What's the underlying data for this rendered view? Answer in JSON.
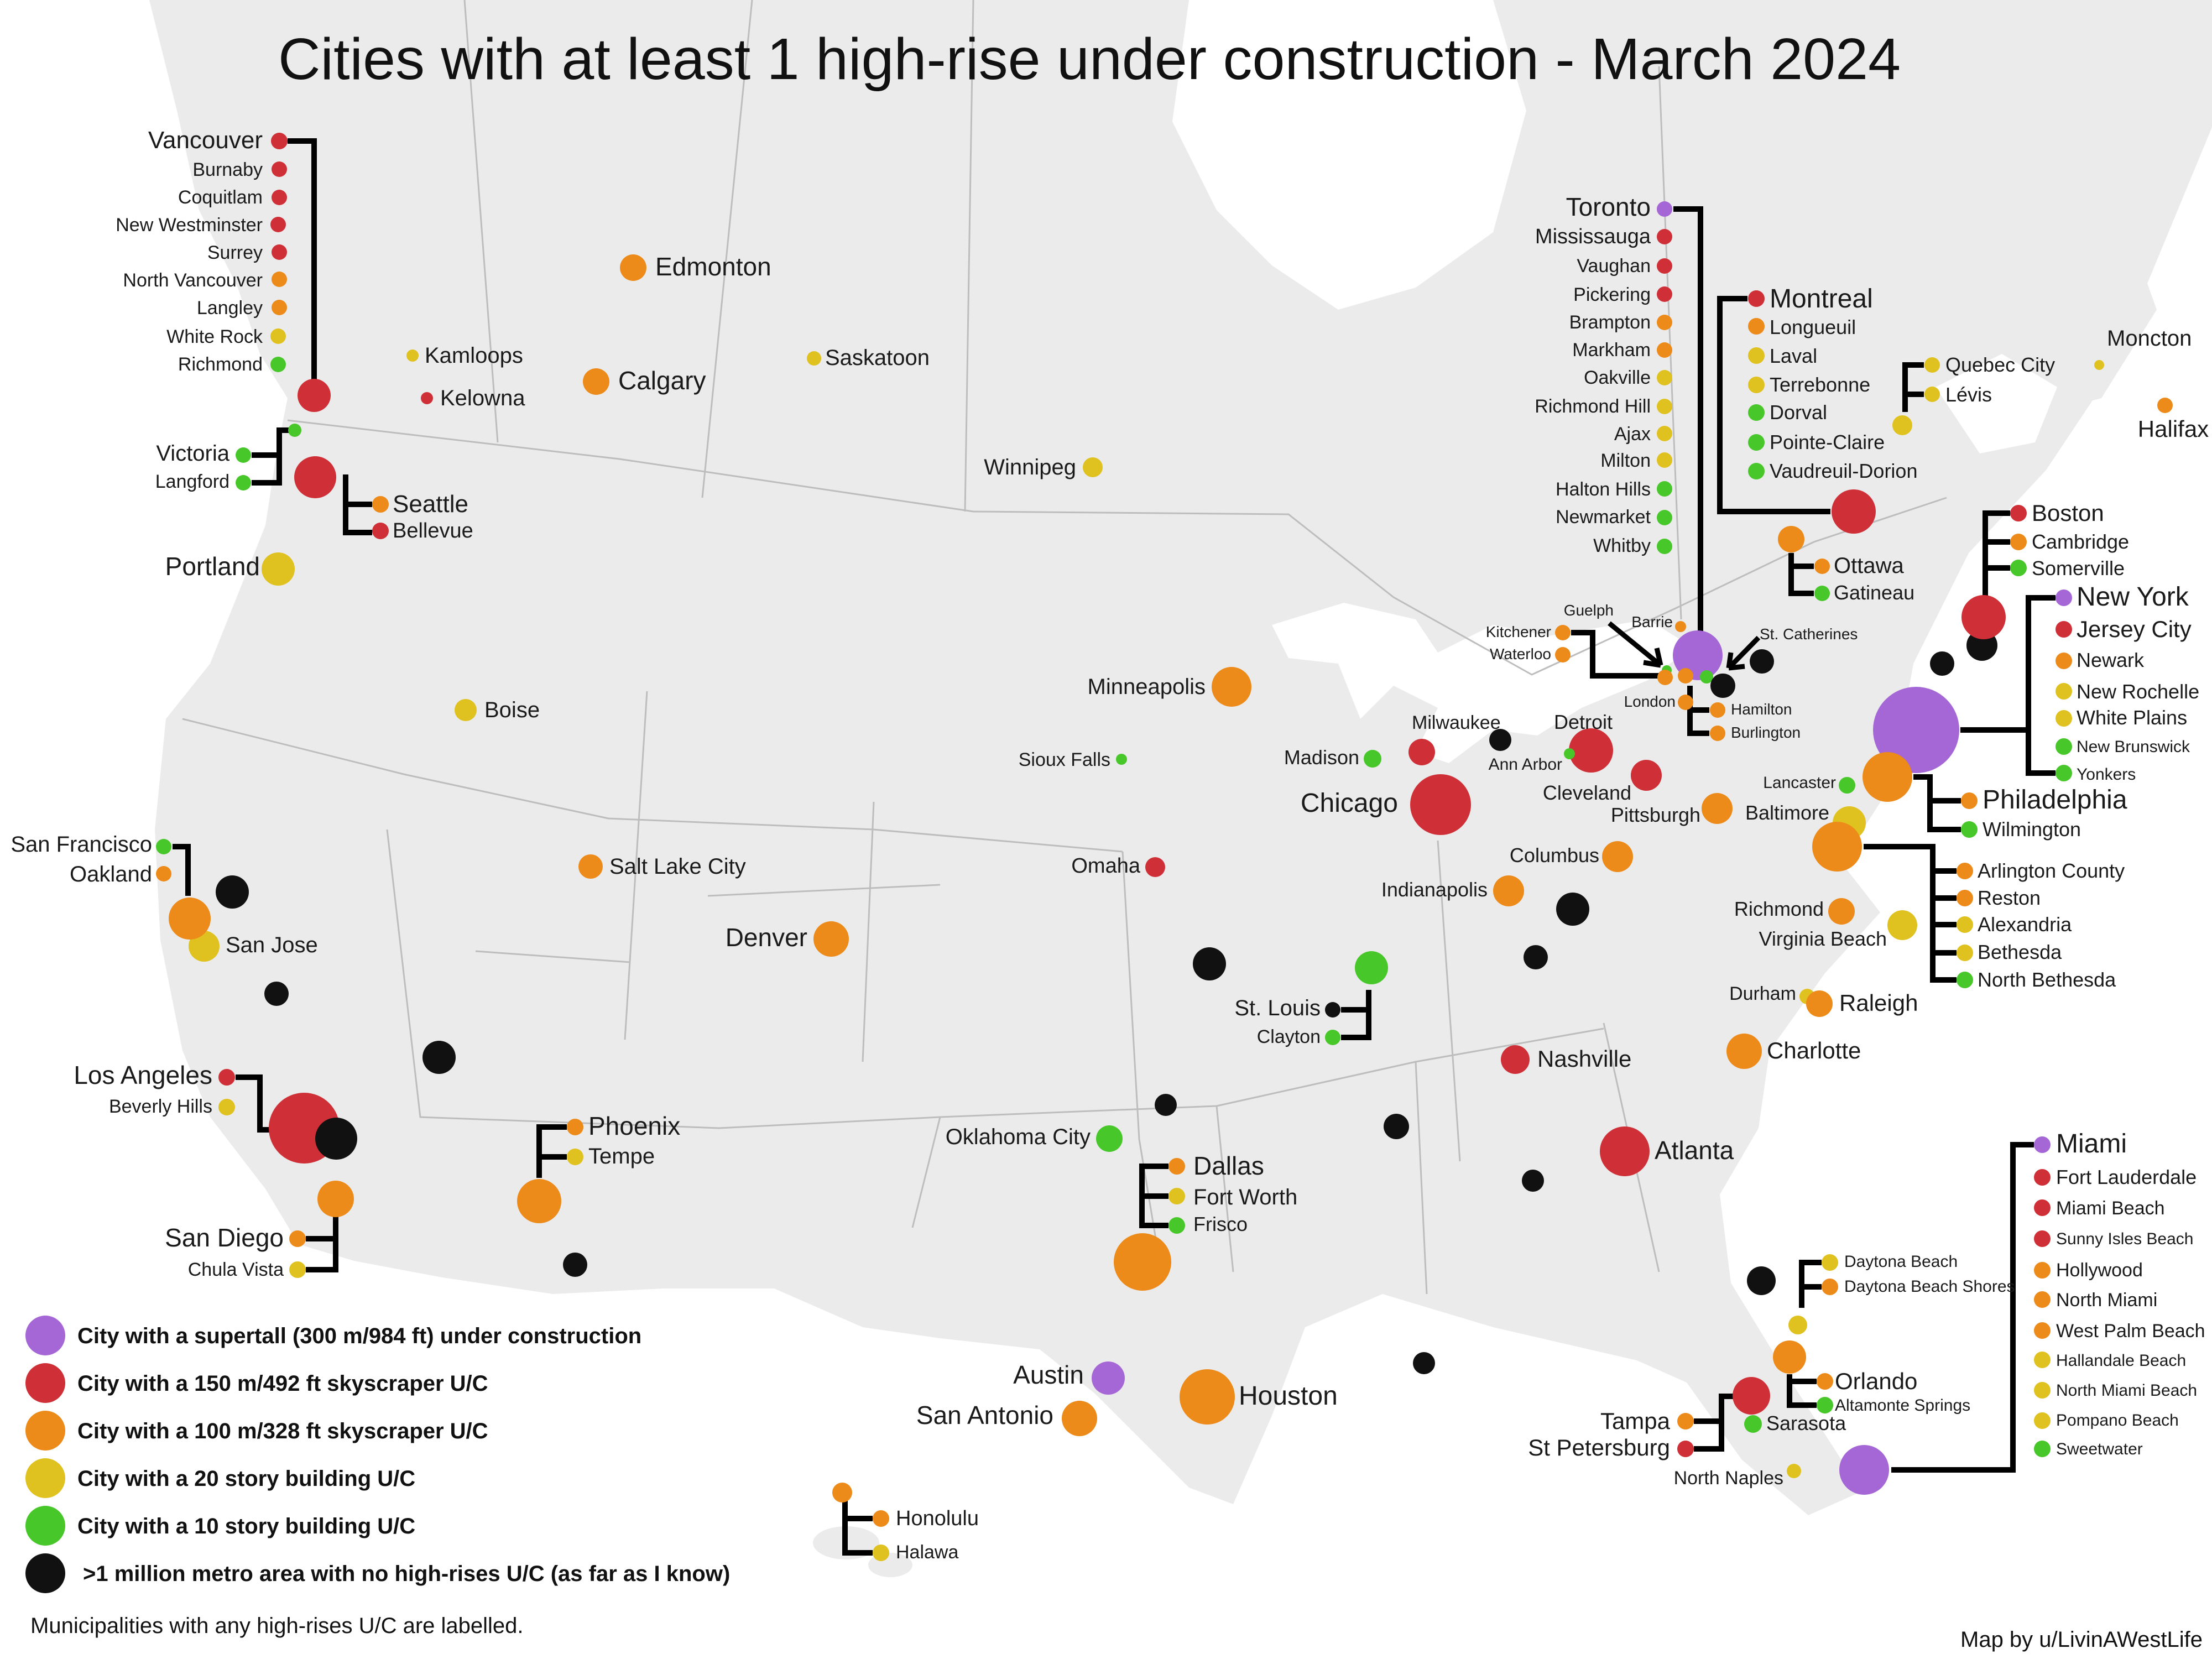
{
  "title": "Cities with at least 1 high-rise under construction - March 2024",
  "colors": {
    "purple": "#a566d6",
    "red": "#cf2f36",
    "orange": "#ec8a1a",
    "yellow": "#dfc21f",
    "green": "#48c72a",
    "black": "#111111",
    "land": "#ebebeb",
    "water": "#ffffff"
  },
  "legend": [
    {
      "color": "purple",
      "label": "City with a supertall (300 m/984 ft) under construction"
    },
    {
      "color": "red",
      "label": "City with a 150 m/492 ft skyscraper U/C"
    },
    {
      "color": "orange",
      "label": "City with a 100 m/328 ft skyscraper U/C"
    },
    {
      "color": "yellow",
      "label": "City with a 20 story building U/C"
    },
    {
      "color": "green",
      "label": "City with a 10 story building U/C"
    },
    {
      "color": "black",
      "label": ">1 million metro area with no high-rises U/C (as far as I know)"
    }
  ],
  "footnote": "Municipalities with any high-rises U/C are labelled.",
  "credit": "Map by u/LivinAWestLife",
  "cities": [
    {
      "name": "Edmonton",
      "cat": "orange"
    },
    {
      "name": "Calgary",
      "cat": "orange"
    },
    {
      "name": "Saskatoon",
      "cat": "yellow"
    },
    {
      "name": "Kamloops",
      "cat": "yellow"
    },
    {
      "name": "Kelowna",
      "cat": "red"
    },
    {
      "name": "Winnipeg",
      "cat": "yellow"
    },
    {
      "name": "Portland",
      "cat": "yellow"
    },
    {
      "name": "Boise",
      "cat": "yellow"
    },
    {
      "name": "Minneapolis",
      "cat": "orange"
    },
    {
      "name": "Sioux Falls",
      "cat": "green"
    },
    {
      "name": "Salt Lake City",
      "cat": "orange"
    },
    {
      "name": "Denver",
      "cat": "orange"
    },
    {
      "name": "Omaha",
      "cat": "red"
    },
    {
      "name": "Madison",
      "cat": "green"
    },
    {
      "name": "Milwaukee",
      "cat": "red"
    },
    {
      "name": "Chicago",
      "cat": "red"
    },
    {
      "name": "Detroit",
      "cat": "red"
    },
    {
      "name": "Ann Arbor",
      "cat": "green"
    },
    {
      "name": "Cleveland",
      "cat": "red"
    },
    {
      "name": "Pittsburgh",
      "cat": "orange"
    },
    {
      "name": "Columbus",
      "cat": "orange"
    },
    {
      "name": "Indianapolis",
      "cat": "orange"
    },
    {
      "name": "Nashville",
      "cat": "red"
    },
    {
      "name": "Atlanta",
      "cat": "red"
    },
    {
      "name": "Charlotte",
      "cat": "orange"
    },
    {
      "name": "Durham",
      "cat": "yellow"
    },
    {
      "name": "Raleigh",
      "cat": "orange"
    },
    {
      "name": "Richmond",
      "cat": "orange"
    },
    {
      "name": "Virginia Beach",
      "cat": "yellow"
    },
    {
      "name": "Baltimore",
      "cat": "yellow"
    },
    {
      "name": "Lancaster",
      "cat": "green"
    },
    {
      "name": "Oklahoma City",
      "cat": "green"
    },
    {
      "name": "Austin",
      "cat": "purple"
    },
    {
      "name": "San Antonio",
      "cat": "orange"
    },
    {
      "name": "Houston",
      "cat": "orange"
    },
    {
      "name": "San Jose",
      "cat": "yellow"
    },
    {
      "name": "Moncton",
      "cat": "yellow"
    },
    {
      "name": "Halifax",
      "cat": "orange"
    },
    {
      "name": "Guelph",
      "cat": "green"
    },
    {
      "name": "Barrie",
      "cat": "orange"
    },
    {
      "name": "St. Catherines",
      "cat": "black"
    },
    {
      "name": "London",
      "cat": "orange"
    },
    {
      "name": "North Naples",
      "cat": "yellow"
    }
  ],
  "groups": [
    {
      "id": "vancouver",
      "members": [
        {
          "name": "Vancouver",
          "cat": "red"
        },
        {
          "name": "Burnaby",
          "cat": "red"
        },
        {
          "name": "Coquitlam",
          "cat": "red"
        },
        {
          "name": "New Westminster",
          "cat": "red"
        },
        {
          "name": "Surrey",
          "cat": "red"
        },
        {
          "name": "North Vancouver",
          "cat": "orange"
        },
        {
          "name": "Langley",
          "cat": "orange"
        },
        {
          "name": "White Rock",
          "cat": "yellow"
        },
        {
          "name": "Richmond",
          "cat": "green"
        }
      ]
    },
    {
      "id": "victoria",
      "members": [
        {
          "name": "Victoria",
          "cat": "green"
        },
        {
          "name": "Langford",
          "cat": "green"
        }
      ]
    },
    {
      "id": "seattle",
      "members": [
        {
          "name": "Seattle",
          "cat": "orange"
        },
        {
          "name": "Bellevue",
          "cat": "red"
        }
      ]
    },
    {
      "id": "sf",
      "members": [
        {
          "name": "San Francisco",
          "cat": "green"
        },
        {
          "name": "Oakland",
          "cat": "orange"
        }
      ]
    },
    {
      "id": "la",
      "members": [
        {
          "name": "Los Angeles",
          "cat": "red"
        },
        {
          "name": "Beverly Hills",
          "cat": "yellow"
        }
      ]
    },
    {
      "id": "sd",
      "members": [
        {
          "name": "San Diego",
          "cat": "orange"
        },
        {
          "name": "Chula Vista",
          "cat": "yellow"
        }
      ]
    },
    {
      "id": "phx",
      "members": [
        {
          "name": "Phoenix",
          "cat": "orange"
        },
        {
          "name": "Tempe",
          "cat": "yellow"
        }
      ]
    },
    {
      "id": "dfw",
      "members": [
        {
          "name": "Dallas",
          "cat": "orange"
        },
        {
          "name": "Fort Worth",
          "cat": "yellow"
        },
        {
          "name": "Frisco",
          "cat": "green"
        }
      ]
    },
    {
      "id": "stl",
      "members": [
        {
          "name": "St. Louis",
          "cat": "black"
        },
        {
          "name": "Clayton",
          "cat": "green"
        }
      ]
    },
    {
      "id": "honolulu",
      "members": [
        {
          "name": "Honolulu",
          "cat": "orange"
        },
        {
          "name": "Halawa",
          "cat": "yellow"
        }
      ]
    },
    {
      "id": "toronto",
      "members": [
        {
          "name": "Toronto",
          "cat": "purple"
        },
        {
          "name": "Mississauga",
          "cat": "red"
        },
        {
          "name": "Vaughan",
          "cat": "red"
        },
        {
          "name": "Pickering",
          "cat": "red"
        },
        {
          "name": "Brampton",
          "cat": "orange"
        },
        {
          "name": "Markham",
          "cat": "orange"
        },
        {
          "name": "Oakville",
          "cat": "yellow"
        },
        {
          "name": "Richmond Hill",
          "cat": "yellow"
        },
        {
          "name": "Ajax",
          "cat": "yellow"
        },
        {
          "name": "Milton",
          "cat": "yellow"
        },
        {
          "name": "Halton Hills",
          "cat": "green"
        },
        {
          "name": "Newmarket",
          "cat": "green"
        },
        {
          "name": "Whitby",
          "cat": "green"
        }
      ]
    },
    {
      "id": "montreal",
      "members": [
        {
          "name": "Montreal",
          "cat": "red"
        },
        {
          "name": "Longueuil",
          "cat": "orange"
        },
        {
          "name": "Laval",
          "cat": "yellow"
        },
        {
          "name": "Terrebonne",
          "cat": "yellow"
        },
        {
          "name": "Dorval",
          "cat": "green"
        },
        {
          "name": "Pointe-Claire",
          "cat": "green"
        },
        {
          "name": "Vaudreuil-Dorion",
          "cat": "green"
        }
      ]
    },
    {
      "id": "quebec",
      "members": [
        {
          "name": "Quebec City",
          "cat": "yellow"
        },
        {
          "name": "Lévis",
          "cat": "yellow"
        }
      ]
    },
    {
      "id": "ottawa",
      "members": [
        {
          "name": "Ottawa",
          "cat": "orange"
        },
        {
          "name": "Gatineau",
          "cat": "green"
        }
      ]
    },
    {
      "id": "kw",
      "members": [
        {
          "name": "Kitchener",
          "cat": "orange"
        },
        {
          "name": "Waterloo",
          "cat": "orange"
        }
      ]
    },
    {
      "id": "hamilton",
      "members": [
        {
          "name": "Hamilton",
          "cat": "orange"
        },
        {
          "name": "Burlington",
          "cat": "orange"
        }
      ]
    },
    {
      "id": "boston",
      "members": [
        {
          "name": "Boston",
          "cat": "red"
        },
        {
          "name": "Cambridge",
          "cat": "orange"
        },
        {
          "name": "Somerville",
          "cat": "green"
        }
      ]
    },
    {
      "id": "nyc",
      "members": [
        {
          "name": "New York",
          "cat": "purple"
        },
        {
          "name": "Jersey City",
          "cat": "red"
        },
        {
          "name": "Newark",
          "cat": "orange"
        },
        {
          "name": "New Rochelle",
          "cat": "yellow"
        },
        {
          "name": "White Plains",
          "cat": "yellow"
        },
        {
          "name": "New Brunswick",
          "cat": "green"
        },
        {
          "name": "Yonkers",
          "cat": "green"
        }
      ]
    },
    {
      "id": "philly",
      "members": [
        {
          "name": "Philadelphia",
          "cat": "orange"
        },
        {
          "name": "Wilmington",
          "cat": "green"
        }
      ]
    },
    {
      "id": "dc",
      "members": [
        {
          "name": "Arlington County",
          "cat": "orange"
        },
        {
          "name": "Reston",
          "cat": "orange"
        },
        {
          "name": "Alexandria",
          "cat": "yellow"
        },
        {
          "name": "Bethesda",
          "cat": "yellow"
        },
        {
          "name": "North Bethesda",
          "cat": "green"
        }
      ]
    },
    {
      "id": "daytona",
      "members": [
        {
          "name": "Daytona Beach",
          "cat": "yellow"
        },
        {
          "name": "Daytona Beach Shores",
          "cat": "orange"
        }
      ]
    },
    {
      "id": "orlando",
      "members": [
        {
          "name": "Orlando",
          "cat": "orange"
        },
        {
          "name": "Altamonte Springs",
          "cat": "green"
        }
      ]
    },
    {
      "id": "tampa",
      "members": [
        {
          "name": "Tampa",
          "cat": "orange"
        },
        {
          "name": "St Petersburg",
          "cat": "red"
        },
        {
          "name": "Sarasota",
          "cat": "green"
        }
      ]
    },
    {
      "id": "miami",
      "members": [
        {
          "name": "Miami",
          "cat": "purple"
        },
        {
          "name": "Fort Lauderdale",
          "cat": "red"
        },
        {
          "name": "Miami Beach",
          "cat": "red"
        },
        {
          "name": "Sunny Isles Beach",
          "cat": "red"
        },
        {
          "name": "Hollywood",
          "cat": "orange"
        },
        {
          "name": "North Miami",
          "cat": "orange"
        },
        {
          "name": "West Palm Beach",
          "cat": "orange"
        },
        {
          "name": "Hallandale Beach",
          "cat": "yellow"
        },
        {
          "name": "North Miami Beach",
          "cat": "yellow"
        },
        {
          "name": "Pompano Beach",
          "cat": "yellow"
        },
        {
          "name": "Sweetwater",
          "cat": "green"
        }
      ]
    }
  ]
}
